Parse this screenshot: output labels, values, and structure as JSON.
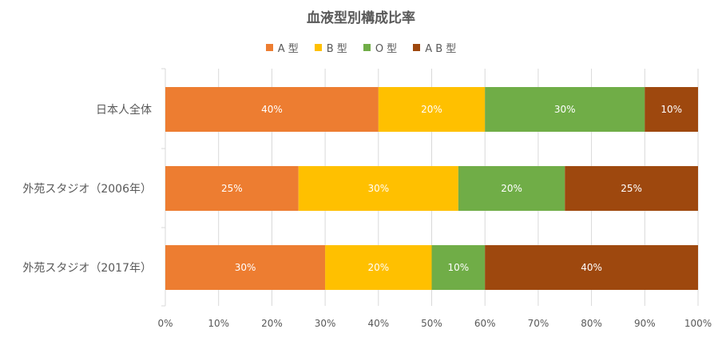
{
  "chart_data": {
    "type": "bar",
    "orientation": "horizontal",
    "stacked": true,
    "title": "血液型別構成比率",
    "categories": [
      "日本人全体",
      "外苑スタジオ（2006年）",
      "外苑スタジオ（2017年）"
    ],
    "series": [
      {
        "name": "A 型",
        "color": "#ED7D31",
        "values": [
          40,
          25,
          30
        ]
      },
      {
        "name": "B 型",
        "color": "#FFC000",
        "values": [
          20,
          30,
          20
        ]
      },
      {
        "name": "O 型",
        "color": "#70AD47",
        "values": [
          30,
          20,
          10
        ]
      },
      {
        "name": "A B 型",
        "color": "#9E480E",
        "values": [
          10,
          25,
          40
        ]
      }
    ],
    "data_labels": [
      [
        "40%",
        "25%",
        "30%"
      ],
      [
        "20%",
        "30%",
        "20%"
      ],
      [
        "30%",
        "20%",
        "10%"
      ],
      [
        "10%",
        "25%",
        "40%"
      ]
    ],
    "xlim": [
      0,
      100
    ],
    "xticks": [
      "0%",
      "10%",
      "20%",
      "30%",
      "40%",
      "50%",
      "60%",
      "70%",
      "80%",
      "90%",
      "100%"
    ],
    "grid": true,
    "legend_position": "top"
  }
}
